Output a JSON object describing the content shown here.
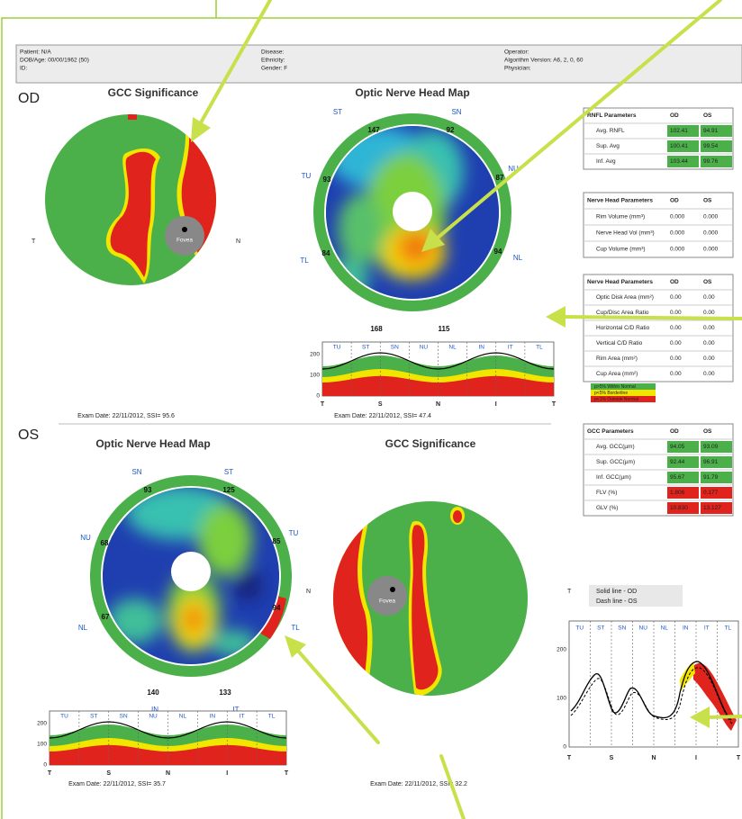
{
  "header": {
    "col1": [
      "Patient: N/A",
      "DOB/Age: 00/00/1962 (50)",
      "ID:"
    ],
    "col2": [
      "Disease:",
      "Ethnicity:",
      "Gender: F"
    ],
    "col3": [
      "Operator:",
      "Algorithm Version: A6, 2, 0, 60",
      "Physician:"
    ]
  },
  "od": {
    "label": "OD",
    "gcc_title": "GCC Significance",
    "onh_title": "Optic Nerve Head Map",
    "temporal": "T",
    "nasal": "N",
    "fovea": "Fovea",
    "sectors": [
      {
        "name": "ST",
        "value": "147"
      },
      {
        "name": "SN",
        "value": "92"
      },
      {
        "name": "NU",
        "value": "87"
      },
      {
        "name": "NL",
        "value": "94"
      },
      {
        "name": "IN",
        "value": "115"
      },
      {
        "name": "IT",
        "value": "168"
      },
      {
        "name": "TL",
        "value": "84"
      },
      {
        "name": "TU",
        "value": "93"
      }
    ],
    "exam_gcc": "Exam Date: 22/11/2012, SSI= 95.6",
    "exam_onh": "Exam Date: 22/11/2012, SSI= 47.4"
  },
  "os": {
    "label": "OS",
    "gcc_title": "GCC Significance",
    "onh_title": "Optic Nerve Head Map",
    "temporal": "T",
    "nasal": "N",
    "fovea": "Fovea",
    "sectors": [
      {
        "name": "SN",
        "value": "93"
      },
      {
        "name": "ST",
        "value": "125"
      },
      {
        "name": "TU",
        "value": "85"
      },
      {
        "name": "TL",
        "value": "94"
      },
      {
        "name": "IT",
        "value": "133"
      },
      {
        "name": "IN",
        "value": "140"
      },
      {
        "name": "NL",
        "value": "67"
      },
      {
        "name": "NU",
        "value": "68"
      }
    ],
    "exam_onh": "Exam Date: 22/11/2012, SSI= 35.7",
    "exam_gcc": "Exam Date: 22/11/2012, SSI= 32.2"
  },
  "profile": {
    "small_yticks": [
      "200",
      "100",
      "0"
    ],
    "large_yticks": [
      "200",
      "100",
      "0"
    ],
    "xlabels": [
      "T",
      "S",
      "N",
      "I",
      "T"
    ],
    "sectors": [
      "TU",
      "ST",
      "SN",
      "NU",
      "NL",
      "IN",
      "IT",
      "TL"
    ]
  },
  "tables": [
    {
      "header": [
        "RNFL Parameters",
        "OD",
        "OS"
      ],
      "rows": [
        [
          "Avg. RNFL",
          "102.41",
          "94.91"
        ],
        [
          "Sup. Avg",
          "100.41",
          "99.54"
        ],
        [
          "Inf. Avg",
          "103.44",
          "99.76"
        ]
      ],
      "row_colors": [
        "#4cb04a",
        "#4cb04a",
        "#4cb04a"
      ]
    },
    {
      "header": [
        "Nerve Head Parameters",
        "OD",
        "OS"
      ],
      "rows": [
        [
          "Rim Volume (mm³)",
          "0.000",
          "0.000"
        ],
        [
          "Nerve Head Vol (mm³)",
          "0.000",
          "0.000"
        ],
        [
          "Cup Volume (mm³)",
          "0.000",
          "0.000"
        ]
      ],
      "row_colors": [
        null,
        null,
        null
      ]
    },
    {
      "header": [
        "Nerve Head Parameters",
        "OD",
        "OS"
      ],
      "rows": [
        [
          "Optic Disk Area (mm²)",
          "0.00",
          "0.00"
        ],
        [
          "Cup/Disc Area Ratio",
          "0.00",
          "0.00"
        ],
        [
          "Horizontal C/D Ratio",
          "0.00",
          "0.00"
        ],
        [
          "Vertical C/D Ratio",
          "0.00",
          "0.00"
        ],
        [
          "Rim Area (mm²)",
          "0.00",
          "0.00"
        ],
        [
          "Cup Area (mm²)",
          "0.00",
          "0.00"
        ]
      ],
      "row_colors": [
        null,
        null,
        null,
        null,
        null,
        null
      ]
    },
    {
      "header": [
        "GCC Parameters",
        "OD",
        "OS"
      ],
      "rows": [
        [
          "Avg. GCC(µm)",
          "94.05",
          "93.09"
        ],
        [
          "Sup. GCC(µm)",
          "92.44",
          "96.91"
        ],
        [
          "Inf. GCC(µm)",
          "95.67",
          "91.79"
        ],
        [
          "FLV (%)",
          "1.806",
          "0.177"
        ],
        [
          "GLV (%)",
          "10.830",
          "13.127"
        ]
      ],
      "row_colors": [
        "#4cb04a",
        "#4cb04a",
        "#4cb04a",
        "#e0231c",
        "#e0231c"
      ]
    }
  ],
  "legend": [
    {
      "label": "p>5% Within Normal",
      "color": "#4cb04a"
    },
    {
      "label": "p<5% Borderline",
      "color": "#f2e600"
    },
    {
      "label": "p<1% Outside Normal",
      "color": "#e0231c"
    }
  ],
  "compare_legend": [
    "Solid line - OD",
    "Dash line - OS"
  ]
}
